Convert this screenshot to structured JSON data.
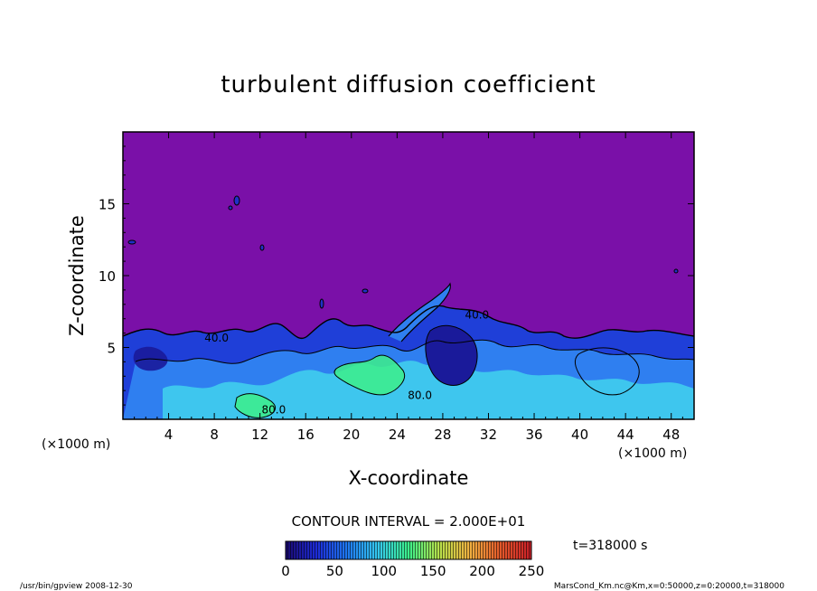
{
  "chart_data": {
    "type": "heatmap",
    "title": "turbulent diffusion coefficient",
    "xlabel": "X-coordinate",
    "ylabel": "Z-coordinate",
    "x_unit": "(×1000 m)",
    "y_unit": "(×1000 m)",
    "xlim": [
      0,
      50
    ],
    "ylim": [
      0,
      20
    ],
    "x_ticks": [
      4,
      8,
      12,
      16,
      20,
      24,
      28,
      32,
      36,
      40,
      44,
      48
    ],
    "y_ticks": [
      5,
      10,
      15
    ],
    "contour_interval_text": "CONTOUR INTERVAL = 2.000E+01",
    "contour_labels": [
      {
        "text": "40.0",
        "x": 8.2,
        "z": 5.4
      },
      {
        "text": "40.0",
        "x": 31.0,
        "z": 7.0
      },
      {
        "text": "80.0",
        "x": 26.0,
        "z": 1.4
      },
      {
        "text": "80.0",
        "x": 13.2,
        "z": 0.4
      }
    ],
    "colorbar": {
      "min": 0,
      "max": 250,
      "ticks": [
        0,
        50,
        100,
        150,
        200,
        250
      ],
      "colors": [
        "#1a0a6e",
        "#1d2bd8",
        "#1e78f0",
        "#35c8ee",
        "#3cef8a",
        "#b8e04a",
        "#f0b040",
        "#e4582a",
        "#c81e28"
      ]
    },
    "time_label": "t=318000 s",
    "colors": {
      "background_field": "#7a10a8"
    }
  },
  "footer": {
    "left": "/usr/bin/gpview   2008-12-30",
    "right": "MarsCond_Km.nc@Km,x=0:50000,z=0:20000,t=318000"
  }
}
